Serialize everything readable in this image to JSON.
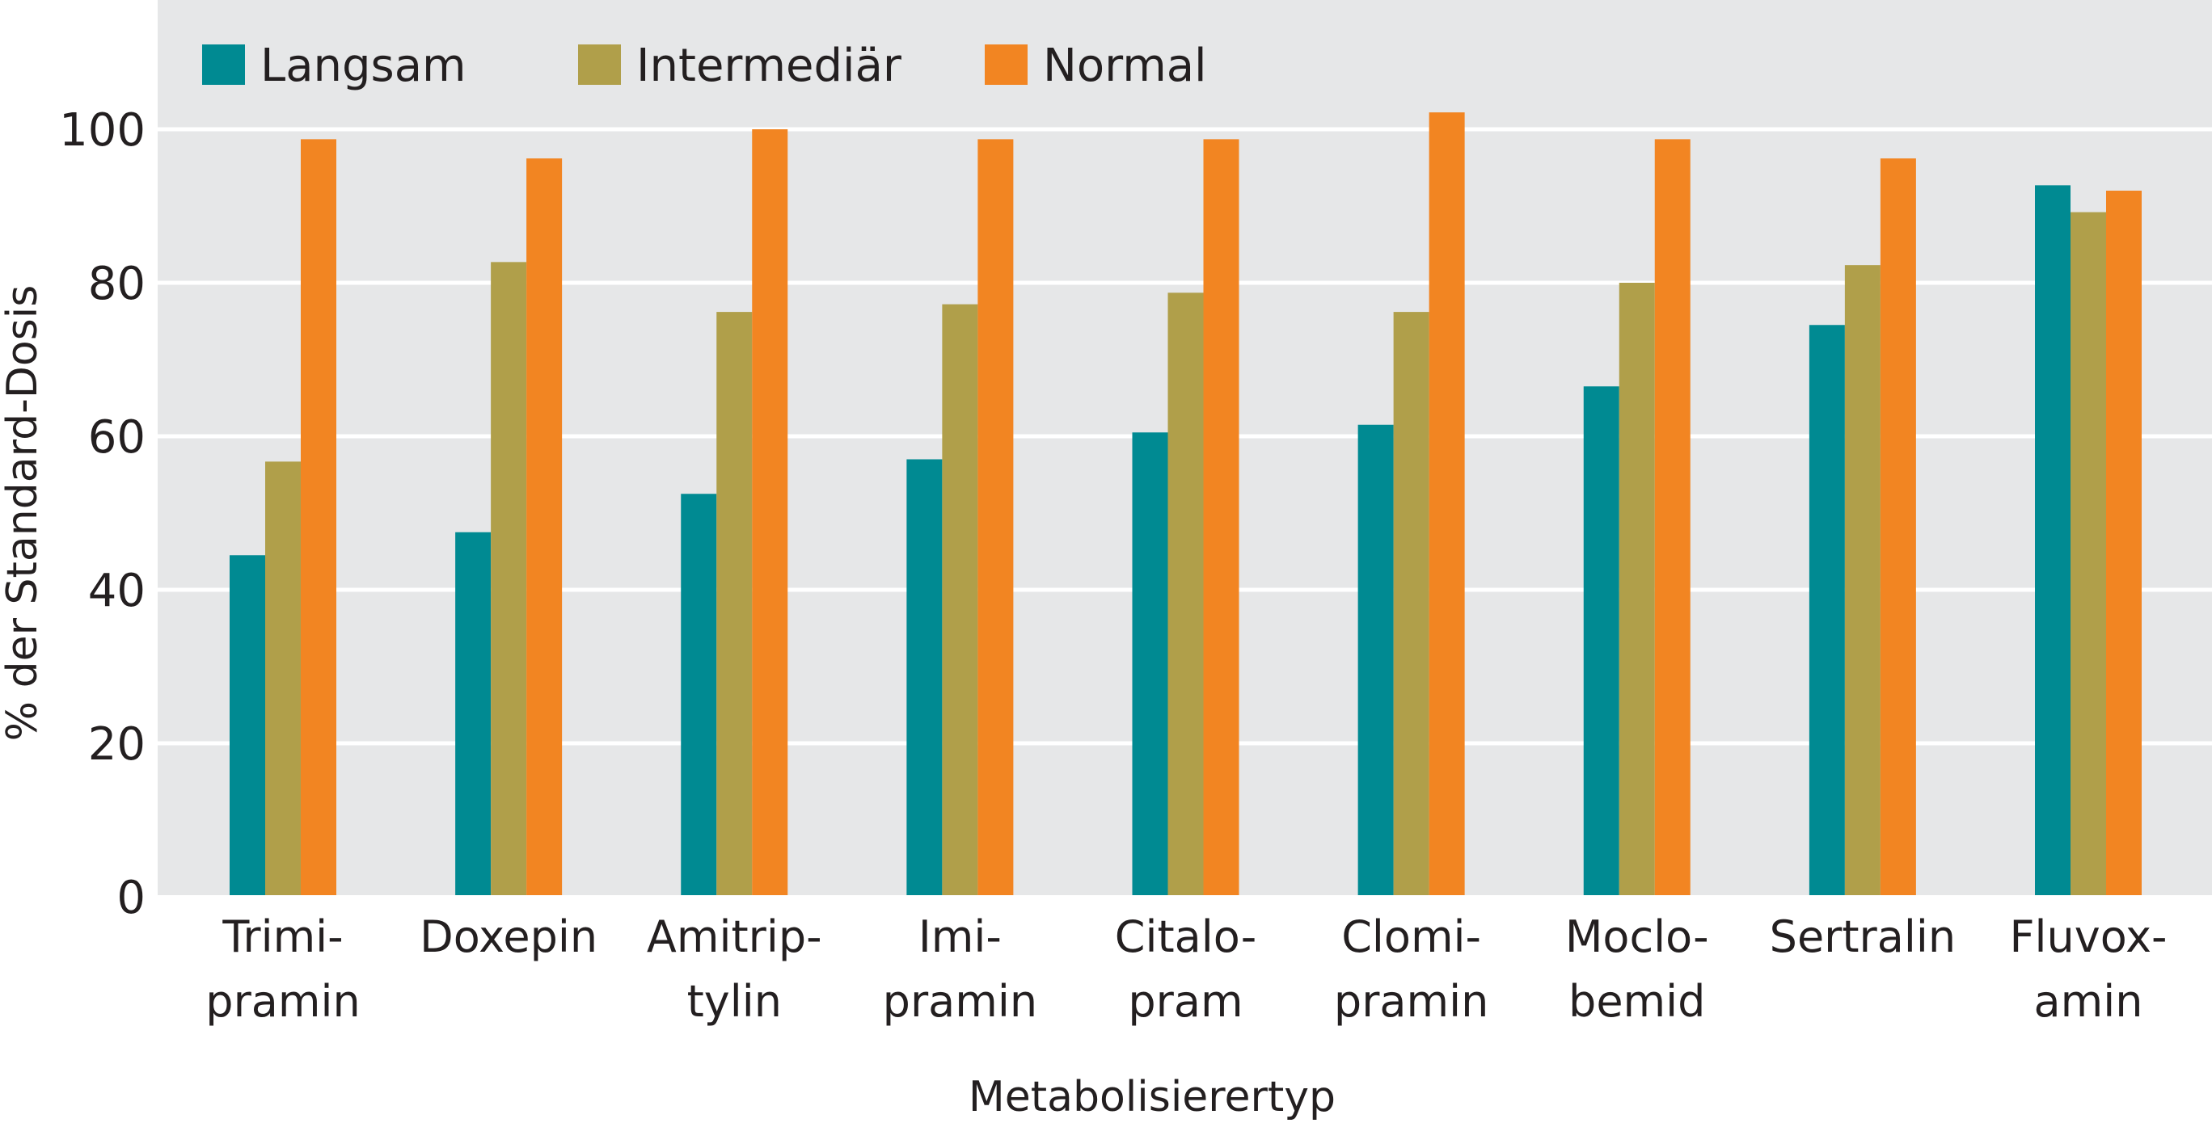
{
  "chart_data": {
    "type": "bar",
    "title": "",
    "xlabel": "Metabolisierertyp",
    "ylabel": "% der Standard-Dosis",
    "ylim": [
      0,
      100
    ],
    "yticks": [
      "0",
      "20",
      "40",
      "60",
      "80",
      "100"
    ],
    "grid": true,
    "legend_position": "top-left",
    "categories": [
      [
        "Trimi-",
        "pramin"
      ],
      [
        "Doxepin"
      ],
      [
        "Amitrip-",
        "tylin"
      ],
      [
        "Imi-",
        "pramin"
      ],
      [
        "Citalo-",
        "pram"
      ],
      [
        "Clomi-",
        "pramin"
      ],
      [
        "Moclo-",
        "bemid"
      ],
      [
        "Sertralin"
      ],
      [
        "Fluvox-",
        "amin"
      ]
    ],
    "series": [
      {
        "name": "Langsam",
        "color": "#008a92",
        "values": [
          44.5,
          47.5,
          52.5,
          57,
          60.5,
          61.5,
          66.5,
          74.5,
          92.7
        ]
      },
      {
        "name": "Intermediär",
        "color": "#b09f4a",
        "values": [
          56.7,
          82.7,
          76.2,
          77.2,
          78.7,
          76.2,
          80,
          82.3,
          89.2
        ]
      },
      {
        "name": "Normal",
        "color": "#f28522",
        "values": [
          98.7,
          96.2,
          100,
          98.7,
          98.7,
          102.2,
          98.7,
          96.2,
          92
        ]
      }
    ]
  }
}
